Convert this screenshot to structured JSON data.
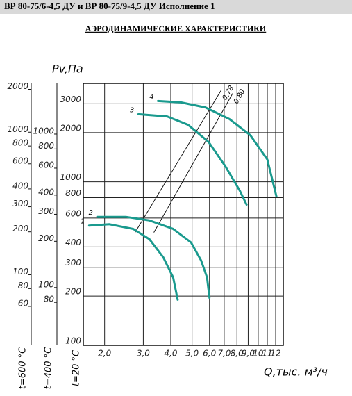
{
  "header": {
    "title": "ВР 80-75/6-4,5 ДУ и ВР 80-75/9-4,5 ДУ Исполнение 1"
  },
  "chart_data": {
    "type": "line",
    "title": "АЭРОДИНАМИЧЕСКИЕ ХАРАКТЕРИСТИКИ",
    "x_label": "Q,тыс. м³/ч",
    "y_label": "Pv,Па",
    "y_axis_label": "t=20 °C",
    "xscale": "log",
    "yscale": "log",
    "grid": true,
    "xlim": [
      1.6,
      13
    ],
    "xticks": [
      {
        "value": 2,
        "label": "2,0"
      },
      {
        "value": 3,
        "label": "3,0"
      },
      {
        "value": 4,
        "label": "4,0"
      },
      {
        "value": 5,
        "label": "5,0"
      },
      {
        "value": 6,
        "label": "6,0"
      },
      {
        "value": 7,
        "label": "7,0"
      },
      {
        "value": 8,
        "label": "8,0"
      },
      {
        "value": 9,
        "label": "9,0"
      },
      10,
      11,
      12
    ],
    "ylim": [
      100,
      4000
    ],
    "yticks": [
      100,
      200,
      300,
      400,
      600,
      800,
      1000,
      2000,
      3000
    ],
    "extra_y_axes": [
      {
        "label": "t=600 °C",
        "ylim": [
          32,
          2200
        ],
        "yticks": [
          60,
          80,
          100,
          200,
          300,
          400,
          600,
          800,
          1000,
          2000
        ]
      },
      {
        "label": "t=400 °C",
        "ylim": [
          42,
          2140
        ],
        "yticks": [
          80,
          100,
          200,
          300,
          400,
          600,
          800,
          1000
        ]
      }
    ],
    "series": [
      {
        "name": "1",
        "color": "#1a9a8e",
        "x": [
          1.7,
          2.1,
          2.7,
          3.2,
          3.7,
          4.1,
          4.3
        ],
        "values": [
          540,
          550,
          515,
          445,
          345,
          260,
          190
        ]
      },
      {
        "name": "2",
        "color": "#1a9a8e",
        "x": [
          1.85,
          2.5,
          3.2,
          4.1,
          4.95,
          5.5,
          5.85,
          6.0
        ],
        "values": [
          610,
          610,
          580,
          515,
          425,
          330,
          260,
          195
        ]
      },
      {
        "name": "3",
        "color": "#1a9a8e",
        "x": [
          2.85,
          3.85,
          4.8,
          5.95,
          7.1,
          8.25,
          8.85
        ],
        "values": [
          2590,
          2510,
          2230,
          1750,
          1240,
          880,
          725
        ]
      },
      {
        "name": "4",
        "color": "#1a9a8e",
        "x": [
          3.5,
          4.45,
          5.75,
          7.4,
          9.2,
          11,
          12.1
        ],
        "values": [
          3120,
          3060,
          2850,
          2420,
          1930,
          1370,
          815
        ]
      }
    ],
    "efficiency_lines": [
      {
        "name": "0,78",
        "color": "#111111",
        "x": [
          2.75,
          6.8
        ],
        "values": [
          490,
          3650
        ]
      },
      {
        "name": "0,80",
        "color": "#111111",
        "x": [
          3.35,
          7.65
        ],
        "values": [
          490,
          3470
        ]
      }
    ]
  }
}
